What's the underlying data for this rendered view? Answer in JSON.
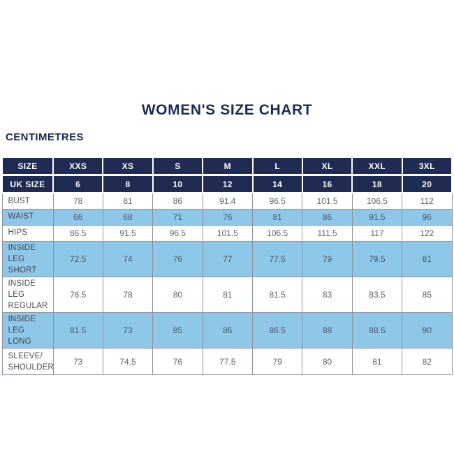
{
  "title": "WOMEN'S SIZE CHART",
  "unit_label": "CENTIMETRES",
  "colors": {
    "navy_header": "#1f2b52",
    "highlight_blue": "#8fc7e8",
    "grid_line": "#8d939b",
    "heading_text": "#1b2c53"
  },
  "chart_data": {
    "type": "table",
    "title": "WOMEN'S SIZE CHART",
    "unit": "CENTIMETRES",
    "size_header": {
      "label": "SIZE",
      "values": [
        "XXS",
        "XS",
        "S",
        "M",
        "L",
        "XL",
        "XXL",
        "3XL"
      ]
    },
    "uk_size_header": {
      "label": "UK SIZE",
      "values": [
        "6",
        "8",
        "10",
        "12",
        "14",
        "16",
        "18",
        "20"
      ]
    },
    "rows": [
      {
        "label": "BUST",
        "values": [
          "78",
          "81",
          "86",
          "91.4",
          "96.5",
          "101.5",
          "106.5",
          "112"
        ],
        "highlight": false
      },
      {
        "label": "WAIST",
        "values": [
          "66",
          "68",
          "71",
          "76",
          "81",
          "86",
          "91.5",
          "96"
        ],
        "highlight": true
      },
      {
        "label": "HIPS",
        "values": [
          "86.5",
          "91.5",
          "96.5",
          "101.5",
          "106.5",
          "111.5",
          "117",
          "122"
        ],
        "highlight": false
      },
      {
        "label": "INSIDE LEG\nSHORT",
        "values": [
          "72.5",
          "74",
          "76",
          "77",
          "77.5",
          "79",
          "79.5",
          "81"
        ],
        "highlight": true
      },
      {
        "label": "INSIDE LEG\nREGULAR",
        "values": [
          "76.5",
          "78",
          "80",
          "81",
          "81.5",
          "83",
          "83.5",
          "85"
        ],
        "highlight": false
      },
      {
        "label": "INSIDE LEG\nLONG",
        "values": [
          "81.5",
          "73",
          "85",
          "86",
          "86.5",
          "88",
          "88.5",
          "90"
        ],
        "highlight": true
      },
      {
        "label": "SLEEVE/\nSHOULDER",
        "values": [
          "73",
          "74.5",
          "76",
          "77.5",
          "79",
          "80",
          "81",
          "82"
        ],
        "highlight": false
      }
    ]
  }
}
